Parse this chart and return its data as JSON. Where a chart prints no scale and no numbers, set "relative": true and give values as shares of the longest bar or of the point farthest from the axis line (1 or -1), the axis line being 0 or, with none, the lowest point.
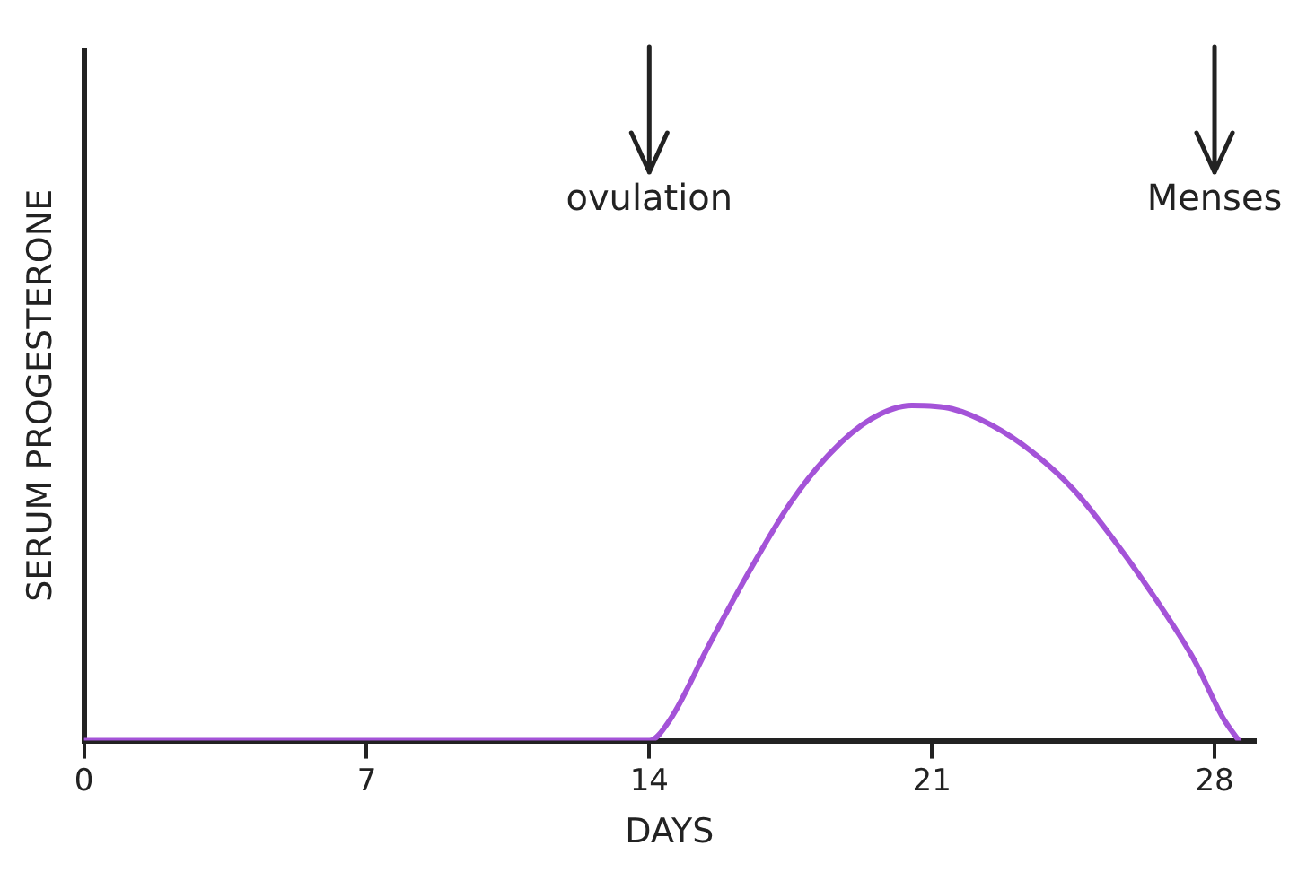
{
  "chart_data": {
    "type": "line",
    "relative": true,
    "xlabel": "DAYS",
    "ylabel": "SERUM PROGESTERONE",
    "xlim": [
      0,
      29
    ],
    "xticks": [
      0,
      7,
      14,
      21,
      28
    ],
    "grid": false,
    "legend": false,
    "marker": "none",
    "line_style": "solid",
    "ref_lines": [
      {
        "axis": "x",
        "value": 14,
        "label": "ovulation"
      },
      {
        "axis": "x",
        "value": 28,
        "label": "Menses"
      }
    ],
    "series": [
      {
        "color": "#a453d8",
        "x": [
          0,
          14,
          14.5,
          15.5,
          16.5,
          17.5,
          18.5,
          19.5,
          20.5,
          21.5,
          22.5,
          23.5,
          24.5,
          25.5,
          26.5,
          27.5,
          28.2,
          28.6
        ],
        "values": [
          0,
          0,
          0.06,
          0.29,
          0.51,
          0.71,
          0.86,
          0.96,
          1,
          0.99,
          0.94,
          0.86,
          0.75,
          0.6,
          0.43,
          0.24,
          0.07,
          0
        ]
      }
    ]
  }
}
